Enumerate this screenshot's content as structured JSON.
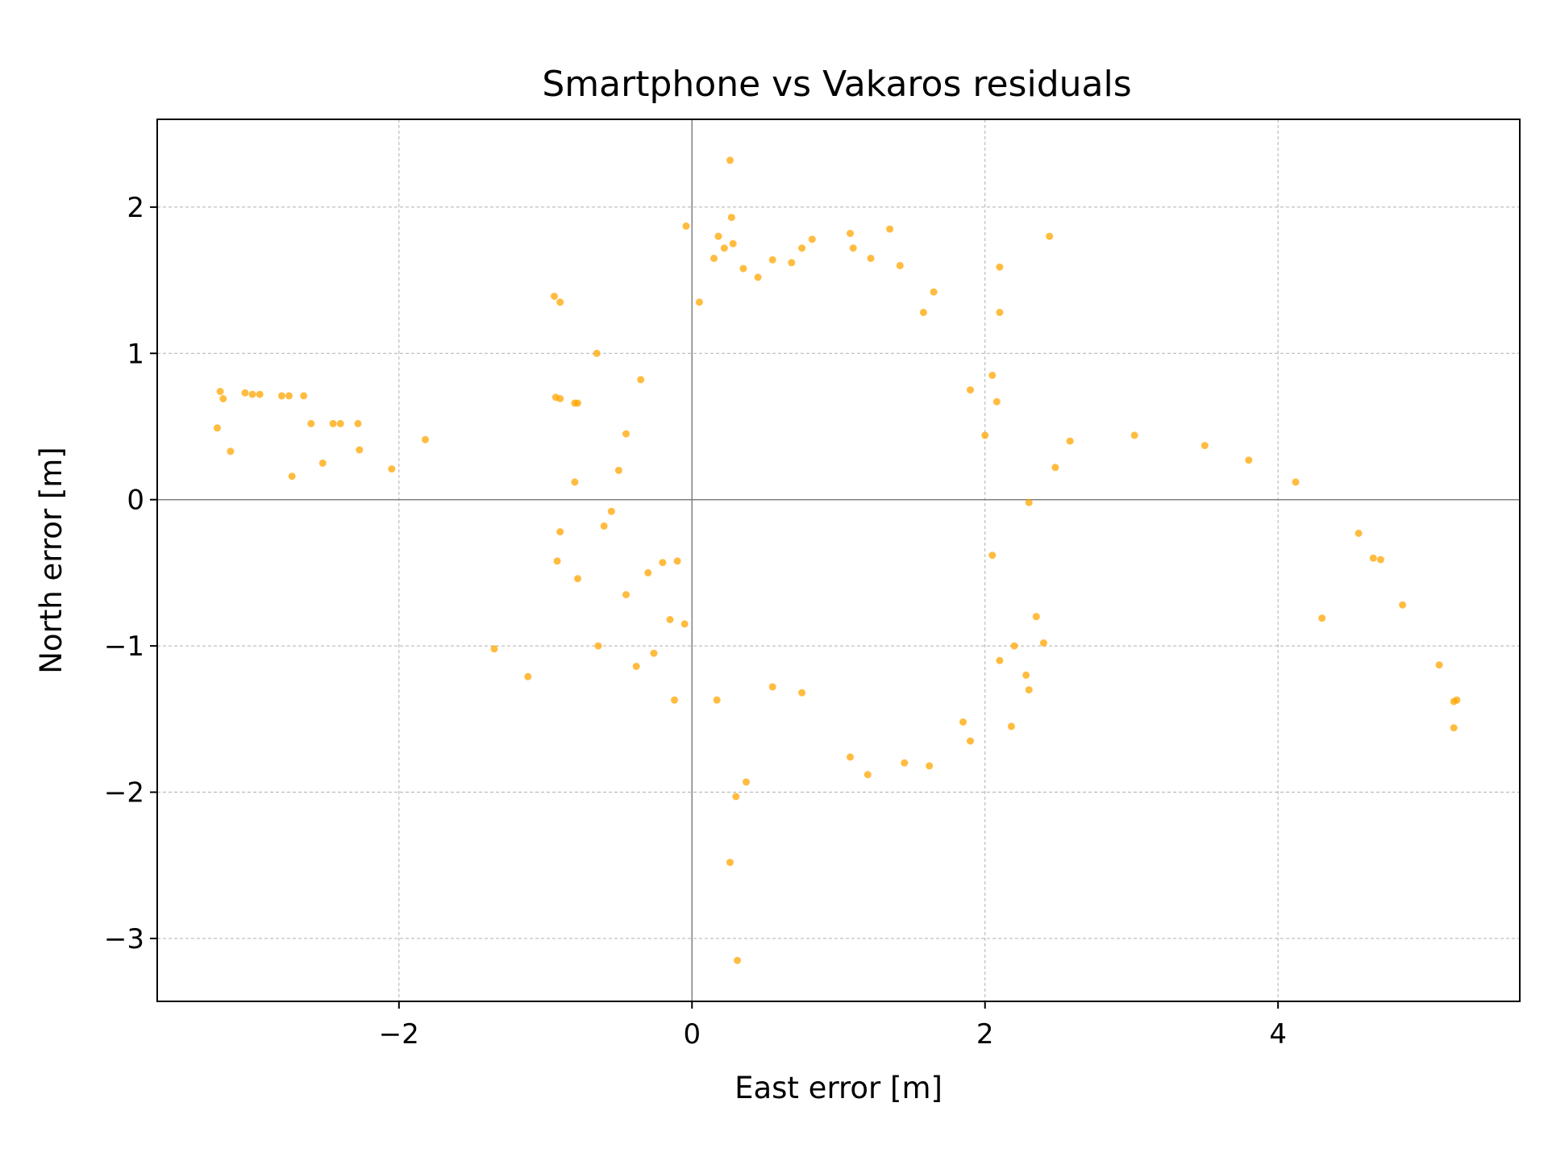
{
  "chart_data": {
    "type": "scatter",
    "title": "Smartphone vs Vakaros residuals",
    "xlabel": "East error [m]",
    "ylabel": "North error [m]",
    "xlim": [
      -3.65,
      5.65
    ],
    "ylim": [
      -3.43,
      2.6
    ],
    "xticks": [
      -2,
      0,
      2,
      4
    ],
    "yticks": [
      -3,
      -2,
      -1,
      0,
      1,
      2
    ],
    "xtick_labels": [
      "−2",
      "0",
      "2",
      "4"
    ],
    "ytick_labels": [
      "−3",
      "−2",
      "−1",
      "0",
      "1",
      "2"
    ],
    "grid": true,
    "reference_lines": {
      "x": 0,
      "y": 0
    },
    "marker_color": "#FFA500",
    "series": [
      {
        "points": [
          [
            -3.22,
            0.74
          ],
          [
            -3.2,
            0.69
          ],
          [
            -3.24,
            0.49
          ],
          [
            -3.15,
            0.33
          ],
          [
            -3.05,
            0.73
          ],
          [
            -3.0,
            0.72
          ],
          [
            -2.95,
            0.72
          ],
          [
            -2.8,
            0.71
          ],
          [
            -2.75,
            0.71
          ],
          [
            -2.65,
            0.71
          ],
          [
            -2.6,
            0.52
          ],
          [
            -2.45,
            0.52
          ],
          [
            -2.4,
            0.52
          ],
          [
            -2.28,
            0.52
          ],
          [
            -2.27,
            0.34
          ],
          [
            -2.05,
            0.21
          ],
          [
            -1.82,
            0.41
          ],
          [
            -2.73,
            0.16
          ],
          [
            -2.52,
            0.25
          ],
          [
            -0.94,
            1.39
          ],
          [
            -0.9,
            1.35
          ],
          [
            -0.93,
            0.7
          ],
          [
            -0.9,
            0.69
          ],
          [
            -0.8,
            0.66
          ],
          [
            -0.78,
            0.66
          ],
          [
            -0.65,
            1.0
          ],
          [
            -0.8,
            0.12
          ],
          [
            -0.9,
            -0.22
          ],
          [
            -0.92,
            -0.42
          ],
          [
            -0.78,
            -0.54
          ],
          [
            -0.64,
            -1.0
          ],
          [
            -1.35,
            -1.02
          ],
          [
            -1.12,
            -1.21
          ],
          [
            -0.26,
            -1.05
          ],
          [
            -0.12,
            -1.37
          ],
          [
            0.17,
            -1.37
          ],
          [
            -0.38,
            -1.14
          ],
          [
            -0.04,
            1.87
          ],
          [
            0.27,
            1.93
          ],
          [
            0.26,
            2.32
          ],
          [
            0.3,
            -2.03
          ],
          [
            0.37,
            -1.93
          ],
          [
            0.26,
            -2.48
          ],
          [
            0.31,
            -3.15
          ],
          [
            2.44,
            1.8
          ],
          [
            2.1,
            1.59
          ],
          [
            2.1,
            1.28
          ],
          [
            2.08,
            0.67
          ],
          [
            2.58,
            0.4
          ],
          [
            2.48,
            0.22
          ],
          [
            3.02,
            0.44
          ],
          [
            3.5,
            0.37
          ],
          [
            3.8,
            0.27
          ],
          [
            4.12,
            0.12
          ],
          [
            2.3,
            -0.02
          ],
          [
            4.55,
            -0.23
          ],
          [
            4.65,
            -0.4
          ],
          [
            4.7,
            -0.41
          ],
          [
            4.3,
            -0.81
          ],
          [
            4.85,
            -0.72
          ],
          [
            5.1,
            -1.13
          ],
          [
            5.2,
            -1.38
          ],
          [
            5.22,
            -1.37
          ],
          [
            5.2,
            -1.56
          ],
          [
            -0.35,
            0.82
          ],
          [
            -0.45,
            0.45
          ],
          [
            -0.5,
            0.2
          ],
          [
            -0.55,
            -0.08
          ],
          [
            -0.6,
            -0.18
          ],
          [
            -0.45,
            -0.65
          ],
          [
            -0.3,
            -0.5
          ],
          [
            -0.2,
            -0.43
          ],
          [
            -0.1,
            -0.42
          ],
          [
            -0.05,
            -0.85
          ],
          [
            -0.15,
            -0.82
          ],
          [
            0.05,
            1.35
          ],
          [
            0.15,
            1.65
          ],
          [
            0.18,
            1.8
          ],
          [
            0.22,
            1.72
          ],
          [
            0.28,
            1.75
          ],
          [
            0.35,
            1.58
          ],
          [
            0.45,
            1.52
          ],
          [
            0.55,
            1.64
          ],
          [
            0.68,
            1.62
          ],
          [
            0.75,
            1.72
          ],
          [
            0.82,
            1.78
          ],
          [
            1.08,
            1.82
          ],
          [
            1.1,
            1.72
          ],
          [
            1.22,
            1.65
          ],
          [
            1.35,
            1.85
          ],
          [
            1.42,
            1.6
          ],
          [
            1.65,
            1.42
          ],
          [
            1.58,
            1.28
          ],
          [
            1.9,
            0.75
          ],
          [
            2.05,
            0.85
          ],
          [
            2.0,
            0.44
          ],
          [
            2.05,
            -0.38
          ],
          [
            2.1,
            -1.1
          ],
          [
            2.2,
            -1.0
          ],
          [
            2.28,
            -1.2
          ],
          [
            2.3,
            -1.3
          ],
          [
            2.35,
            -0.8
          ],
          [
            2.4,
            -0.98
          ],
          [
            2.18,
            -1.55
          ],
          [
            1.9,
            -1.65
          ],
          [
            1.85,
            -1.52
          ],
          [
            1.62,
            -1.82
          ],
          [
            1.45,
            -1.8
          ],
          [
            1.2,
            -1.88
          ],
          [
            1.08,
            -1.76
          ],
          [
            0.55,
            -1.28
          ],
          [
            0.75,
            -1.32
          ]
        ]
      }
    ]
  }
}
